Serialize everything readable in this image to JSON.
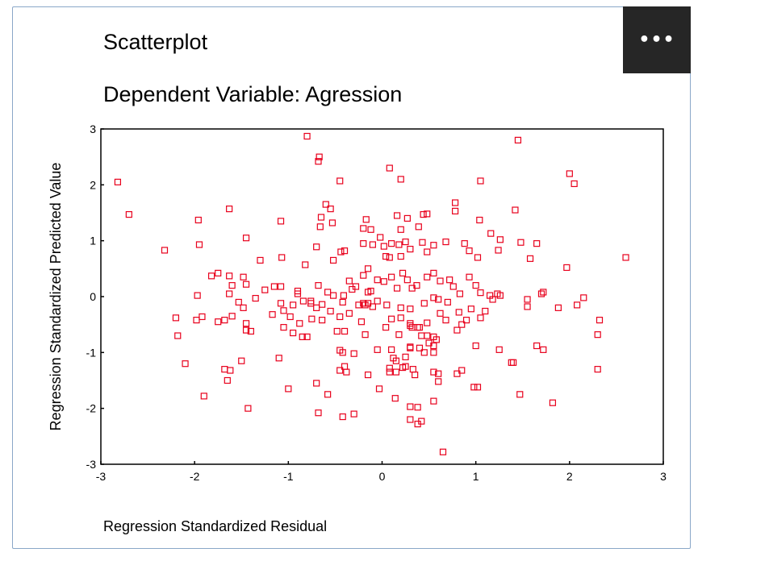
{
  "menu": {
    "more_label": "•••"
  },
  "chart_data": {
    "type": "scatter",
    "title": "Scatterplot",
    "subtitle": "Dependent Variable: Agression",
    "xlabel": "Regression Standardized Residual",
    "ylabel": "Regression Standardized Predicted Value",
    "xlim": [
      -3,
      3
    ],
    "ylim": [
      -3,
      3
    ],
    "xticks": [
      -3,
      -2,
      -1,
      0,
      1,
      2,
      3
    ],
    "yticks": [
      -3,
      -2,
      -1,
      0,
      1,
      2,
      3
    ],
    "marker": "open-square",
    "marker_color": "#e8001c",
    "grid": false,
    "points": [
      [
        -0.8,
        2.87
      ],
      [
        -0.67,
        2.5
      ],
      [
        -0.68,
        2.42
      ],
      [
        1.45,
        2.8
      ],
      [
        0.08,
        2.3
      ],
      [
        0.2,
        2.1
      ],
      [
        -0.45,
        2.07
      ],
      [
        1.05,
        2.07
      ],
      [
        2.0,
        2.2
      ],
      [
        2.05,
        2.02
      ],
      [
        -2.82,
        2.05
      ],
      [
        -2.7,
        1.47
      ],
      [
        -1.96,
        1.37
      ],
      [
        -1.63,
        1.57
      ],
      [
        -1.08,
        1.35
      ],
      [
        -0.6,
        1.65
      ],
      [
        -0.55,
        1.57
      ],
      [
        -0.65,
        1.42
      ],
      [
        -0.53,
        1.32
      ],
      [
        -0.66,
        1.25
      ],
      [
        -0.17,
        1.38
      ],
      [
        -0.2,
        1.22
      ],
      [
        -0.12,
        1.2
      ],
      [
        0.16,
        1.45
      ],
      [
        0.27,
        1.4
      ],
      [
        0.2,
        1.2
      ],
      [
        0.39,
        1.25
      ],
      [
        0.44,
        1.47
      ],
      [
        0.48,
        1.48
      ],
      [
        0.78,
        1.68
      ],
      [
        0.78,
        1.53
      ],
      [
        1.04,
        1.37
      ],
      [
        1.16,
        1.13
      ],
      [
        1.42,
        1.55
      ],
      [
        -1.45,
        1.05
      ],
      [
        -1.95,
        0.93
      ],
      [
        -2.32,
        0.83
      ],
      [
        -1.3,
        0.65
      ],
      [
        -1.07,
        0.7
      ],
      [
        -0.7,
        0.89
      ],
      [
        -0.82,
        0.57
      ],
      [
        -0.44,
        0.8
      ],
      [
        -0.4,
        0.82
      ],
      [
        -0.52,
        0.65
      ],
      [
        -0.2,
        0.95
      ],
      [
        -0.1,
        0.93
      ],
      [
        -0.02,
        1.06
      ],
      [
        0.02,
        0.9
      ],
      [
        0.1,
        0.95
      ],
      [
        0.18,
        0.93
      ],
      [
        0.25,
        0.98
      ],
      [
        0.3,
        0.85
      ],
      [
        0.2,
        0.72
      ],
      [
        0.04,
        0.72
      ],
      [
        0.08,
        0.7
      ],
      [
        0.43,
        0.97
      ],
      [
        0.48,
        0.8
      ],
      [
        0.55,
        0.92
      ],
      [
        0.68,
        0.98
      ],
      [
        0.88,
        0.95
      ],
      [
        0.93,
        0.82
      ],
      [
        1.02,
        0.7
      ],
      [
        1.26,
        1.02
      ],
      [
        1.24,
        0.83
      ],
      [
        1.48,
        0.97
      ],
      [
        1.65,
        0.95
      ],
      [
        1.58,
        0.68
      ],
      [
        2.6,
        0.7
      ],
      [
        1.97,
        0.52
      ],
      [
        -1.75,
        0.42
      ],
      [
        -1.82,
        0.37
      ],
      [
        -1.63,
        0.37
      ],
      [
        -1.48,
        0.35
      ],
      [
        -1.6,
        0.2
      ],
      [
        -1.45,
        0.22
      ],
      [
        -1.25,
        0.12
      ],
      [
        -1.15,
        0.18
      ],
      [
        -1.08,
        0.18
      ],
      [
        -0.9,
        0.1
      ],
      [
        -0.9,
        0.05
      ],
      [
        -0.68,
        0.2
      ],
      [
        -0.58,
        0.08
      ],
      [
        -0.52,
        0.02
      ],
      [
        -0.41,
        0.02
      ],
      [
        -0.32,
        0.13
      ],
      [
        -0.35,
        0.28
      ],
      [
        -0.28,
        0.18
      ],
      [
        -0.2,
        0.38
      ],
      [
        -0.15,
        0.5
      ],
      [
        -0.05,
        0.3
      ],
      [
        0.02,
        0.27
      ],
      [
        0.1,
        0.35
      ],
      [
        0.22,
        0.42
      ],
      [
        0.27,
        0.3
      ],
      [
        0.32,
        0.15
      ],
      [
        0.37,
        0.2
      ],
      [
        0.48,
        0.35
      ],
      [
        0.55,
        0.42
      ],
      [
        0.62,
        0.28
      ],
      [
        0.72,
        0.3
      ],
      [
        0.76,
        0.18
      ],
      [
        0.83,
        0.05
      ],
      [
        0.93,
        0.35
      ],
      [
        1.0,
        0.2
      ],
      [
        1.05,
        0.07
      ],
      [
        1.23,
        0.05
      ],
      [
        1.26,
        0.02
      ],
      [
        1.15,
        0.02
      ],
      [
        1.7,
        0.05
      ],
      [
        1.72,
        0.08
      ],
      [
        -1.97,
        0.02
      ],
      [
        -1.63,
        0.05
      ],
      [
        -0.12,
        0.1
      ],
      [
        -0.15,
        0.08
      ],
      [
        0.16,
        0.15
      ],
      [
        -1.35,
        -0.03
      ],
      [
        -1.53,
        -0.1
      ],
      [
        -1.48,
        -0.2
      ],
      [
        -1.08,
        -0.12
      ],
      [
        -0.95,
        -0.15
      ],
      [
        -0.84,
        -0.08
      ],
      [
        -0.76,
        -0.08
      ],
      [
        -0.76,
        -0.12
      ],
      [
        -0.64,
        -0.14
      ],
      [
        -0.7,
        -0.2
      ],
      [
        -0.55,
        -0.26
      ],
      [
        -0.42,
        -0.1
      ],
      [
        -0.25,
        -0.15
      ],
      [
        -0.18,
        -0.15
      ],
      [
        -0.15,
        -0.12
      ],
      [
        -0.2,
        -0.12
      ],
      [
        -0.05,
        -0.08
      ],
      [
        -0.1,
        -0.18
      ],
      [
        0.05,
        -0.15
      ],
      [
        0.2,
        -0.2
      ],
      [
        0.3,
        -0.22
      ],
      [
        0.45,
        -0.12
      ],
      [
        0.55,
        -0.02
      ],
      [
        0.6,
        -0.05
      ],
      [
        0.7,
        -0.1
      ],
      [
        0.82,
        -0.28
      ],
      [
        0.95,
        -0.22
      ],
      [
        1.1,
        -0.26
      ],
      [
        1.05,
        -0.38
      ],
      [
        1.18,
        -0.05
      ],
      [
        1.55,
        -0.05
      ],
      [
        1.55,
        -0.18
      ],
      [
        1.88,
        -0.2
      ],
      [
        2.08,
        -0.15
      ],
      [
        2.15,
        -0.02
      ],
      [
        -2.2,
        -0.38
      ],
      [
        -1.98,
        -0.42
      ],
      [
        -1.92,
        -0.36
      ],
      [
        -1.75,
        -0.45
      ],
      [
        -1.68,
        -0.42
      ],
      [
        -1.6,
        -0.35
      ],
      [
        -1.17,
        -0.32
      ],
      [
        -1.05,
        -0.25
      ],
      [
        -0.98,
        -0.36
      ],
      [
        -0.88,
        -0.48
      ],
      [
        -0.75,
        -0.4
      ],
      [
        -0.64,
        -0.42
      ],
      [
        -0.45,
        -0.36
      ],
      [
        -0.35,
        -0.3
      ],
      [
        -0.22,
        -0.45
      ],
      [
        0.1,
        -0.4
      ],
      [
        0.2,
        -0.38
      ],
      [
        0.3,
        -0.48
      ],
      [
        0.38,
        -0.55
      ],
      [
        0.48,
        -0.47
      ],
      [
        0.62,
        -0.3
      ],
      [
        0.68,
        -0.42
      ],
      [
        0.85,
        -0.5
      ],
      [
        0.9,
        -0.42
      ],
      [
        2.32,
        -0.42
      ],
      [
        -2.18,
        -0.7
      ],
      [
        -1.45,
        -0.6
      ],
      [
        -1.4,
        -0.62
      ],
      [
        -1.45,
        -0.48
      ],
      [
        -1.05,
        -0.55
      ],
      [
        -0.95,
        -0.65
      ],
      [
        -0.8,
        -0.72
      ],
      [
        -0.85,
        -0.72
      ],
      [
        -0.48,
        -0.62
      ],
      [
        -0.4,
        -0.62
      ],
      [
        -0.18,
        -0.68
      ],
      [
        0.04,
        -0.55
      ],
      [
        0.18,
        -0.68
      ],
      [
        0.3,
        -0.52
      ],
      [
        0.32,
        -0.55
      ],
      [
        0.4,
        -0.55
      ],
      [
        0.42,
        -0.7
      ],
      [
        0.48,
        -0.7
      ],
      [
        0.55,
        -0.72
      ],
      [
        0.3,
        -0.9
      ],
      [
        0.4,
        -0.92
      ],
      [
        0.5,
        -0.83
      ],
      [
        0.55,
        -0.88
      ],
      [
        0.58,
        -0.77
      ],
      [
        0.8,
        -0.6
      ],
      [
        2.3,
        -0.68
      ],
      [
        -0.45,
        -0.96
      ],
      [
        -0.42,
        -1.0
      ],
      [
        -0.3,
        -1.02
      ],
      [
        -0.05,
        -0.95
      ],
      [
        0.1,
        -0.95
      ],
      [
        0.12,
        -1.1
      ],
      [
        0.15,
        -1.15
      ],
      [
        0.25,
        -1.08
      ],
      [
        0.3,
        -0.92
      ],
      [
        0.45,
        -1.0
      ],
      [
        0.55,
        -1.0
      ],
      [
        1.0,
        -0.88
      ],
      [
        1.25,
        -0.95
      ],
      [
        1.38,
        -1.18
      ],
      [
        1.4,
        -1.18
      ],
      [
        1.65,
        -0.88
      ],
      [
        1.72,
        -0.95
      ],
      [
        -2.1,
        -1.2
      ],
      [
        -1.1,
        -1.1
      ],
      [
        -1.5,
        -1.15
      ],
      [
        -1.68,
        -1.3
      ],
      [
        -1.62,
        -1.32
      ],
      [
        -1.65,
        -1.5
      ],
      [
        -0.4,
        -1.25
      ],
      [
        -0.38,
        -1.35
      ],
      [
        -0.45,
        -1.32
      ],
      [
        -0.15,
        -1.4
      ],
      [
        0.08,
        -1.28
      ],
      [
        0.15,
        -1.35
      ],
      [
        0.08,
        -1.35
      ],
      [
        0.22,
        -1.27
      ],
      [
        0.33,
        -1.3
      ],
      [
        0.35,
        -1.4
      ],
      [
        0.25,
        -1.25
      ],
      [
        0.55,
        -1.35
      ],
      [
        0.6,
        -1.52
      ],
      [
        0.6,
        -1.38
      ],
      [
        0.8,
        -1.38
      ],
      [
        0.85,
        -1.32
      ],
      [
        0.98,
        -1.62
      ],
      [
        1.02,
        -1.62
      ],
      [
        2.3,
        -1.3
      ],
      [
        -1.9,
        -1.78
      ],
      [
        -1.0,
        -1.65
      ],
      [
        -0.7,
        -1.55
      ],
      [
        -0.58,
        -1.75
      ],
      [
        -0.03,
        -1.65
      ],
      [
        0.14,
        -1.82
      ],
      [
        0.3,
        -1.97
      ],
      [
        0.38,
        -1.98
      ],
      [
        0.55,
        -1.87
      ],
      [
        1.47,
        -1.75
      ],
      [
        1.82,
        -1.9
      ],
      [
        -1.43,
        -2.0
      ],
      [
        -0.68,
        -2.08
      ],
      [
        -0.42,
        -2.15
      ],
      [
        -0.3,
        -2.1
      ],
      [
        0.3,
        -2.2
      ],
      [
        0.38,
        -2.28
      ],
      [
        0.42,
        -2.23
      ],
      [
        0.65,
        -2.78
      ]
    ]
  }
}
